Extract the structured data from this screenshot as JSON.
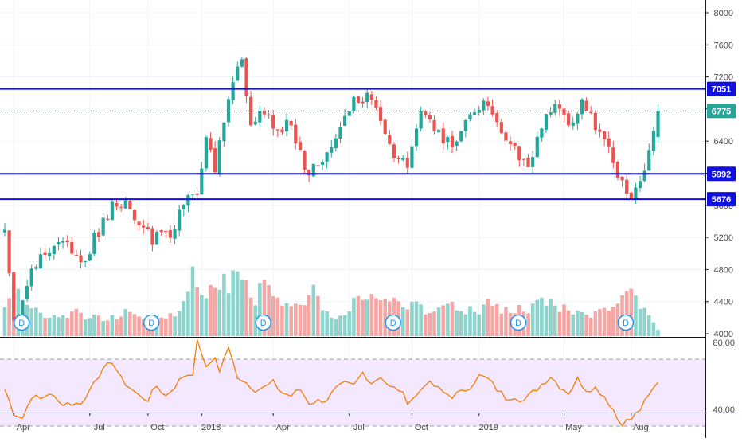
{
  "chart_data": {
    "type": "candlestick",
    "title": "",
    "xlabel": "",
    "ylabel": "",
    "ylim": [
      4000,
      8100
    ],
    "y_ticks": [
      8000,
      7600,
      7200,
      6800,
      6400,
      6000,
      5600,
      5200,
      4800,
      4400,
      4000
    ],
    "x_tick_labels": [
      "Apr",
      "Jul",
      "Oct",
      "2018",
      "Apr",
      "Jul",
      "Oct",
      "2019",
      "May",
      "Aug"
    ],
    "x_tick_bars": [
      2,
      19,
      32,
      44,
      60,
      77,
      91,
      106,
      125,
      140
    ],
    "n_bars": 147,
    "up_color": "#26a69a",
    "down_color": "#ef5350",
    "level_line_color": "#1010e0",
    "price_line_color": "#26a69a",
    "horizontal_levels": [
      {
        "value": 7051,
        "label": "7051"
      },
      {
        "value": 5992,
        "label": "5992"
      },
      {
        "value": 5676,
        "label": "5676"
      }
    ],
    "last_price": {
      "value": 6775,
      "label": "6775"
    },
    "price_anchors": [
      [
        0,
        5260
      ],
      [
        2,
        4120
      ],
      [
        5,
        4660
      ],
      [
        9,
        5000
      ],
      [
        13,
        5180
      ],
      [
        17,
        4820
      ],
      [
        20,
        5180
      ],
      [
        24,
        5600
      ],
      [
        27,
        5640
      ],
      [
        30,
        5320
      ],
      [
        33,
        5180
      ],
      [
        37,
        5250
      ],
      [
        40,
        5600
      ],
      [
        43,
        5800
      ],
      [
        45,
        6400
      ],
      [
        47,
        6050
      ],
      [
        50,
        7000
      ],
      [
        53,
        7400
      ],
      [
        55,
        6650
      ],
      [
        58,
        6800
      ],
      [
        61,
        6500
      ],
      [
        64,
        6650
      ],
      [
        67,
        6050
      ],
      [
        70,
        6050
      ],
      [
        74,
        6500
      ],
      [
        78,
        6900
      ],
      [
        82,
        6950
      ],
      [
        86,
        6300
      ],
      [
        90,
        6050
      ],
      [
        93,
        6700
      ],
      [
        97,
        6500
      ],
      [
        100,
        6350
      ],
      [
        104,
        6700
      ],
      [
        107,
        6900
      ],
      [
        111,
        6500
      ],
      [
        114,
        6300
      ],
      [
        117,
        6050
      ],
      [
        120,
        6600
      ],
      [
        123,
        6850
      ],
      [
        126,
        6550
      ],
      [
        129,
        6850
      ],
      [
        132,
        6600
      ],
      [
        135,
        6350
      ],
      [
        137,
        6000
      ],
      [
        139,
        5700
      ],
      [
        141,
        5800
      ],
      [
        143,
        6050
      ],
      [
        145,
        6450
      ],
      [
        146,
        6775
      ]
    ],
    "volume": {
      "axis_min": 4000,
      "d_marker_label": "D",
      "d_marker_bars": [
        2,
        31,
        56,
        85,
        113,
        137
      ],
      "volume_anchors": [
        [
          0,
          0.28
        ],
        [
          2,
          0.38
        ],
        [
          4,
          0.22
        ],
        [
          8,
          0.2
        ],
        [
          12,
          0.16
        ],
        [
          16,
          0.18
        ],
        [
          20,
          0.14
        ],
        [
          24,
          0.16
        ],
        [
          28,
          0.2
        ],
        [
          32,
          0.14
        ],
        [
          36,
          0.18
        ],
        [
          40,
          0.22
        ],
        [
          42,
          0.56
        ],
        [
          44,
          0.26
        ],
        [
          47,
          0.44
        ],
        [
          50,
          0.42
        ],
        [
          53,
          0.4
        ],
        [
          56,
          0.3
        ],
        [
          59,
          0.42
        ],
        [
          62,
          0.22
        ],
        [
          66,
          0.2
        ],
        [
          69,
          0.4
        ],
        [
          72,
          0.18
        ],
        [
          76,
          0.16
        ],
        [
          80,
          0.32
        ],
        [
          84,
          0.26
        ],
        [
          88,
          0.24
        ],
        [
          92,
          0.22
        ],
        [
          96,
          0.18
        ],
        [
          100,
          0.24
        ],
        [
          104,
          0.2
        ],
        [
          108,
          0.24
        ],
        [
          112,
          0.2
        ],
        [
          116,
          0.22
        ],
        [
          120,
          0.26
        ],
        [
          124,
          0.22
        ],
        [
          128,
          0.2
        ],
        [
          132,
          0.18
        ],
        [
          136,
          0.24
        ],
        [
          138,
          0.36
        ],
        [
          141,
          0.28
        ],
        [
          144,
          0.14
        ],
        [
          146,
          0.06
        ]
      ]
    },
    "rsi": {
      "ylim": [
        20,
        85
      ],
      "ticks": [
        80.0,
        40.0
      ],
      "tick_labels": [
        "80.00",
        "40.00"
      ],
      "upper_band": 70,
      "lower_band": 30,
      "line_color": "#f57c00",
      "band_fill": "#f3e8ff",
      "rsi_anchors": [
        [
          0,
          52
        ],
        [
          2,
          38
        ],
        [
          4,
          35
        ],
        [
          6,
          48
        ],
        [
          8,
          46
        ],
        [
          10,
          50
        ],
        [
          12,
          44
        ],
        [
          14,
          44
        ],
        [
          16,
          43
        ],
        [
          18,
          46
        ],
        [
          20,
          58
        ],
        [
          22,
          63
        ],
        [
          24,
          69
        ],
        [
          26,
          58
        ],
        [
          28,
          53
        ],
        [
          30,
          48
        ],
        [
          32,
          46
        ],
        [
          34,
          54
        ],
        [
          36,
          48
        ],
        [
          38,
          54
        ],
        [
          40,
          60
        ],
        [
          42,
          62
        ],
        [
          43,
          80
        ],
        [
          44,
          74
        ],
        [
          45,
          64
        ],
        [
          47,
          72
        ],
        [
          48,
          62
        ],
        [
          49,
          71
        ],
        [
          50,
          76
        ],
        [
          52,
          60
        ],
        [
          54,
          56
        ],
        [
          56,
          52
        ],
        [
          58,
          53
        ],
        [
          60,
          56
        ],
        [
          62,
          50
        ],
        [
          64,
          48
        ],
        [
          66,
          52
        ],
        [
          68,
          44
        ],
        [
          70,
          45
        ],
        [
          72,
          46
        ],
        [
          74,
          52
        ],
        [
          76,
          55
        ],
        [
          78,
          54
        ],
        [
          80,
          62
        ],
        [
          82,
          56
        ],
        [
          84,
          60
        ],
        [
          86,
          53
        ],
        [
          88,
          52
        ],
        [
          90,
          45
        ],
        [
          92,
          48
        ],
        [
          94,
          56
        ],
        [
          96,
          54
        ],
        [
          98,
          50
        ],
        [
          100,
          48
        ],
        [
          102,
          50
        ],
        [
          104,
          54
        ],
        [
          106,
          60
        ],
        [
          108,
          58
        ],
        [
          110,
          52
        ],
        [
          112,
          47
        ],
        [
          114,
          48
        ],
        [
          116,
          45
        ],
        [
          118,
          50
        ],
        [
          120,
          55
        ],
        [
          122,
          60
        ],
        [
          124,
          54
        ],
        [
          126,
          50
        ],
        [
          128,
          58
        ],
        [
          130,
          52
        ],
        [
          132,
          53
        ],
        [
          134,
          48
        ],
        [
          136,
          40
        ],
        [
          137,
          34
        ],
        [
          138,
          32
        ],
        [
          140,
          34
        ],
        [
          142,
          40
        ],
        [
          144,
          48
        ],
        [
          146,
          57
        ]
      ]
    }
  }
}
